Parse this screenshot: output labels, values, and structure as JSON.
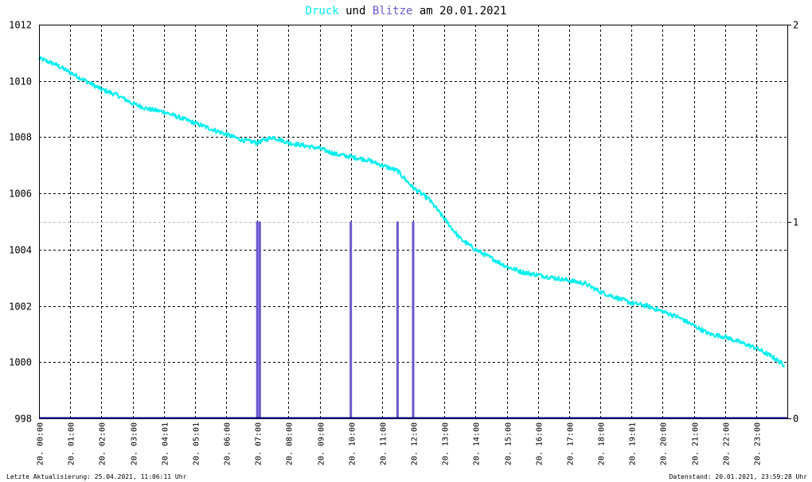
{
  "title": {
    "part1": "Druck",
    "part2": " und ",
    "part3": "Blitze",
    "part4": " am 20.01.2021"
  },
  "footer": {
    "left": "Letzte Aktualisierung: 25.04.2021, 11:06:11 Uhr",
    "right": "Datenstand: 20.01.2021, 23:59:28 Uhr"
  },
  "colors": {
    "pressure": "#00eeee",
    "lightning": "#6a5acd",
    "title_text": "#000000",
    "grid": "#000000",
    "background": "#ffffff",
    "axis_line": "#000080"
  },
  "chart_data": {
    "type": "line",
    "x_domain_hours": [
      0,
      24
    ],
    "left_axis": {
      "ticks": [
        998,
        1000,
        1002,
        1004,
        1006,
        1008,
        1010,
        1012
      ],
      "ylim": [
        998,
        1012
      ]
    },
    "right_axis": {
      "ticks": [
        0,
        1,
        2
      ],
      "ylim": [
        0,
        2
      ]
    },
    "x_ticks": [
      {
        "h": 0.0,
        "label": "20. 00:00"
      },
      {
        "h": 1.0,
        "label": "20. 01:00"
      },
      {
        "h": 2.0,
        "label": "20. 02:00"
      },
      {
        "h": 3.0,
        "label": "20. 03:00"
      },
      {
        "h": 4.0,
        "label": "20. 04:01"
      },
      {
        "h": 5.0,
        "label": "20. 05:01"
      },
      {
        "h": 6.0,
        "label": "20. 06:00"
      },
      {
        "h": 7.0,
        "label": "20. 07:00"
      },
      {
        "h": 8.0,
        "label": "20. 08:00"
      },
      {
        "h": 9.0,
        "label": "20. 09:00"
      },
      {
        "h": 10.0,
        "label": "20. 10:00"
      },
      {
        "h": 11.0,
        "label": "20. 11:00"
      },
      {
        "h": 12.0,
        "label": "20. 12:00"
      },
      {
        "h": 13.0,
        "label": "20. 13:00"
      },
      {
        "h": 14.0,
        "label": "20. 14:00"
      },
      {
        "h": 15.0,
        "label": "20. 15:00"
      },
      {
        "h": 16.0,
        "label": "20. 16:00"
      },
      {
        "h": 17.0,
        "label": "20. 17:00"
      },
      {
        "h": 18.0,
        "label": "20. 18:00"
      },
      {
        "h": 19.0,
        "label": "20. 19:01"
      },
      {
        "h": 20.0,
        "label": "20. 20:00"
      },
      {
        "h": 21.0,
        "label": "20. 21:00"
      },
      {
        "h": 22.0,
        "label": "20. 22:00"
      },
      {
        "h": 23.0,
        "label": "20. 23:00"
      }
    ],
    "series": [
      {
        "name": "Druck",
        "axis": "left",
        "points": [
          [
            0.0,
            1010.8
          ],
          [
            0.5,
            1010.6
          ],
          [
            1.0,
            1010.3
          ],
          [
            1.5,
            1010.0
          ],
          [
            2.0,
            1009.7
          ],
          [
            2.5,
            1009.5
          ],
          [
            3.0,
            1009.2
          ],
          [
            3.5,
            1009.0
          ],
          [
            4.0,
            1008.9
          ],
          [
            4.5,
            1008.7
          ],
          [
            5.0,
            1008.5
          ],
          [
            5.5,
            1008.3
          ],
          [
            6.0,
            1008.1
          ],
          [
            6.5,
            1007.9
          ],
          [
            7.0,
            1007.8
          ],
          [
            7.5,
            1008.0
          ],
          [
            8.0,
            1007.8
          ],
          [
            8.5,
            1007.7
          ],
          [
            9.0,
            1007.6
          ],
          [
            9.5,
            1007.4
          ],
          [
            10.0,
            1007.3
          ],
          [
            10.5,
            1007.2
          ],
          [
            11.0,
            1007.0
          ],
          [
            11.5,
            1006.8
          ],
          [
            12.0,
            1006.2
          ],
          [
            12.5,
            1005.8
          ],
          [
            13.0,
            1005.1
          ],
          [
            13.5,
            1004.4
          ],
          [
            14.0,
            1004.0
          ],
          [
            14.5,
            1003.7
          ],
          [
            15.0,
            1003.4
          ],
          [
            15.5,
            1003.2
          ],
          [
            16.0,
            1003.1
          ],
          [
            16.5,
            1003.0
          ],
          [
            17.0,
            1002.9
          ],
          [
            17.5,
            1002.8
          ],
          [
            18.0,
            1002.5
          ],
          [
            18.5,
            1002.3
          ],
          [
            19.0,
            1002.1
          ],
          [
            19.5,
            1002.0
          ],
          [
            20.0,
            1001.8
          ],
          [
            20.5,
            1001.6
          ],
          [
            21.0,
            1001.3
          ],
          [
            21.5,
            1001.0
          ],
          [
            22.0,
            1000.9
          ],
          [
            22.5,
            1000.7
          ],
          [
            23.0,
            1000.5
          ],
          [
            23.5,
            1000.2
          ],
          [
            23.9,
            999.9
          ]
        ]
      },
      {
        "name": "Blitze",
        "axis": "right",
        "type": "bar",
        "bars": [
          {
            "x": 7.0,
            "y": 1
          },
          {
            "x": 7.08,
            "y": 1
          },
          {
            "x": 10.0,
            "y": 1
          },
          {
            "x": 11.5,
            "y": 1
          },
          {
            "x": 12.0,
            "y": 1
          }
        ]
      }
    ]
  }
}
